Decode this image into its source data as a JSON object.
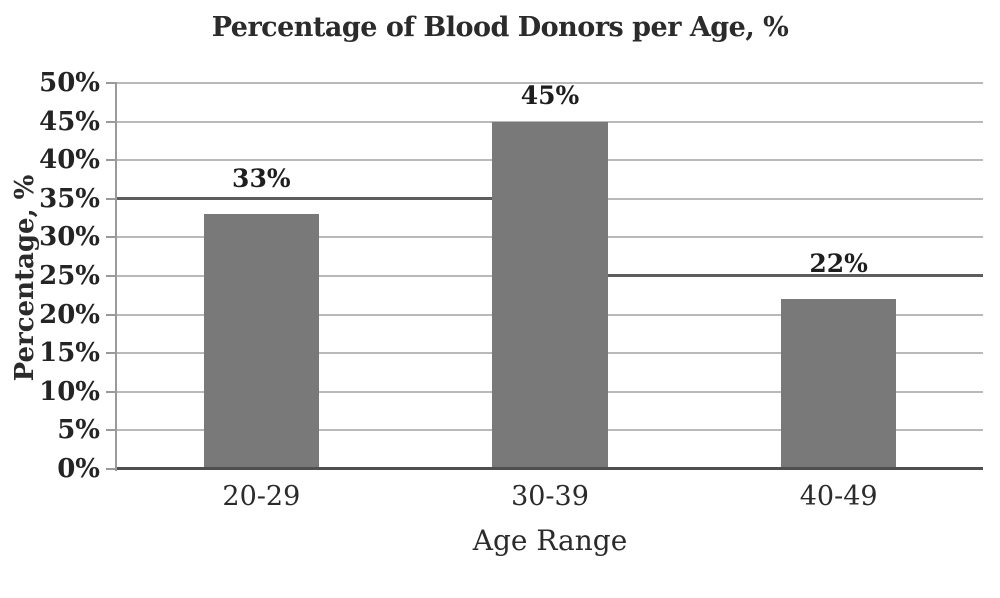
{
  "figure": {
    "background_color": "#ffffff",
    "text_color": "#2b2b2b"
  },
  "chart_data": {
    "type": "bar",
    "title": "Percentage of Blood Donors per Age, %",
    "xlabel": "Age Range",
    "ylabel": "Percentage, %",
    "categories": [
      "20-29",
      "30-39",
      "40-49"
    ],
    "values": [
      33,
      45,
      22
    ],
    "value_labels": [
      "33%",
      "45%",
      "22%"
    ],
    "ylim": [
      0,
      50
    ],
    "ytick_step": 5,
    "ytick_labels": [
      "0%",
      "5%",
      "10%",
      "15%",
      "20%",
      "25%",
      "30%",
      "35%",
      "40%",
      "45%",
      "50%"
    ],
    "grid": "horizontal",
    "legend_position": "none",
    "bar_color": "#797979",
    "gridline_color": "#b9b9b9",
    "emphasis_line_color": "#5d5d5d",
    "emphasis_lines": [
      {
        "y": 35,
        "x_start_frac": 0.0,
        "x_end_frac": 0.567,
        "note": "dark rule from y-axis to 30-39 bar"
      },
      {
        "y": 25,
        "x_start_frac": 0.567,
        "x_end_frac": 1.0,
        "note": "dark rule from 30-39 bar to right plot edge"
      }
    ]
  }
}
